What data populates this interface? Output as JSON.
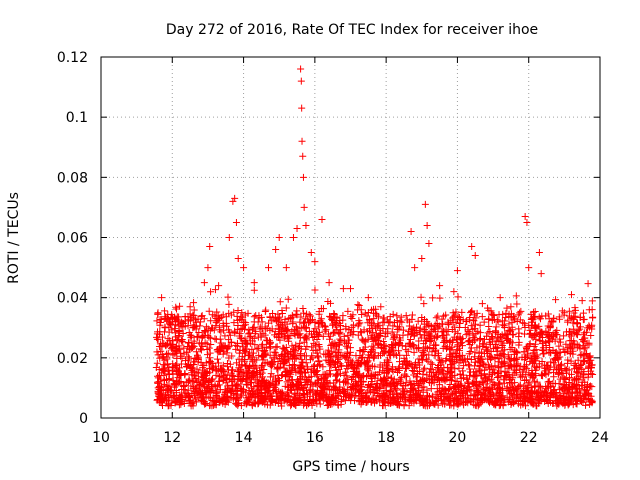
{
  "chart_data": {
    "type": "scatter",
    "title": "Day 272 of 2016, Rate Of TEC Index for receiver ihoe",
    "xlabel": "GPS time / hours",
    "ylabel": "ROTI / TECUs",
    "xlim": [
      10,
      24
    ],
    "ylim": [
      0,
      0.12
    ],
    "xticks": [
      10,
      12,
      14,
      16,
      18,
      20,
      22,
      24
    ],
    "yticks": [
      0,
      0.02,
      0.04,
      0.06,
      0.08,
      0.1,
      0.12
    ],
    "xtick_labels": [
      "10",
      "12",
      "14",
      "16",
      "18",
      "20",
      "22",
      "24"
    ],
    "ytick_labels": [
      "0",
      "0.02",
      "0.04",
      "0.06",
      "0.08",
      "0.1",
      "0.12"
    ],
    "grid": true,
    "marker": "+",
    "color": "#ff0000",
    "data_range_x": [
      11.55,
      23.8
    ],
    "series": [
      {
        "name": "ROTI",
        "points": [
          [
            11.6,
            0.035
          ],
          [
            11.7,
            0.04
          ],
          [
            11.8,
            0.03
          ],
          [
            12.1,
            0.033
          ],
          [
            12.5,
            0.037
          ],
          [
            12.9,
            0.045
          ],
          [
            13.0,
            0.05
          ],
          [
            13.05,
            0.057
          ],
          [
            13.3,
            0.044
          ],
          [
            13.6,
            0.06
          ],
          [
            13.7,
            0.072
          ],
          [
            13.75,
            0.073
          ],
          [
            13.8,
            0.065
          ],
          [
            13.85,
            0.053
          ],
          [
            14.0,
            0.05
          ],
          [
            14.3,
            0.045
          ],
          [
            14.7,
            0.05
          ],
          [
            14.9,
            0.056
          ],
          [
            15.0,
            0.06
          ],
          [
            15.2,
            0.05
          ],
          [
            15.4,
            0.06
          ],
          [
            15.5,
            0.063
          ],
          [
            15.6,
            0.116
          ],
          [
            15.62,
            0.112
          ],
          [
            15.63,
            0.103
          ],
          [
            15.64,
            0.092
          ],
          [
            15.66,
            0.087
          ],
          [
            15.68,
            0.08
          ],
          [
            15.7,
            0.07
          ],
          [
            15.75,
            0.064
          ],
          [
            15.9,
            0.055
          ],
          [
            16.0,
            0.052
          ],
          [
            16.2,
            0.066
          ],
          [
            16.4,
            0.045
          ],
          [
            16.8,
            0.043
          ],
          [
            17.0,
            0.043
          ],
          [
            17.3,
            0.036
          ],
          [
            17.5,
            0.04
          ],
          [
            17.85,
            0.037
          ],
          [
            18.3,
            0.034
          ],
          [
            18.7,
            0.062
          ],
          [
            18.8,
            0.05
          ],
          [
            19.0,
            0.053
          ],
          [
            19.1,
            0.071
          ],
          [
            19.15,
            0.064
          ],
          [
            19.2,
            0.058
          ],
          [
            19.5,
            0.044
          ],
          [
            19.9,
            0.042
          ],
          [
            20.0,
            0.049
          ],
          [
            20.4,
            0.057
          ],
          [
            20.5,
            0.054
          ],
          [
            20.7,
            0.038
          ],
          [
            21.2,
            0.04
          ],
          [
            21.5,
            0.037
          ],
          [
            21.9,
            0.067
          ],
          [
            21.95,
            0.065
          ],
          [
            22.0,
            0.05
          ],
          [
            22.3,
            0.055
          ],
          [
            22.35,
            0.048
          ],
          [
            22.6,
            0.03
          ],
          [
            23.0,
            0.035
          ],
          [
            23.2,
            0.041
          ],
          [
            23.5,
            0.039
          ],
          [
            23.7,
            0.036
          ]
        ],
        "band": {
          "description": "dense band of points",
          "typical_min": 0.005,
          "typical_max": 0.035
        }
      }
    ]
  }
}
